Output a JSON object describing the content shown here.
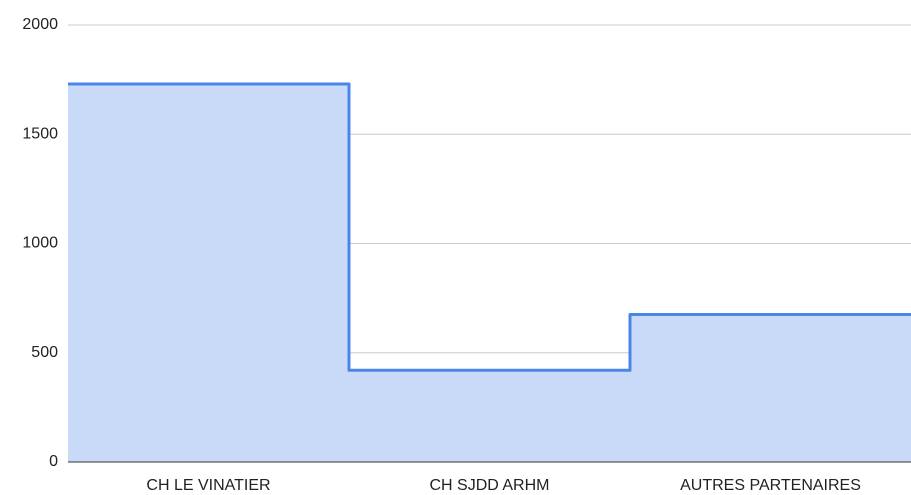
{
  "chart_data": {
    "type": "stepped-area",
    "categories": [
      "CH LE VINATIER",
      "CH SJDD ARHM",
      "AUTRES PARTENAIRES"
    ],
    "values": [
      1730,
      420,
      675
    ],
    "color": "#4a86e8",
    "fill": "#c9daf8",
    "ylim": [
      0,
      2000
    ],
    "yticks": [
      0,
      500,
      1000,
      1500,
      2000
    ],
    "grid": true
  }
}
